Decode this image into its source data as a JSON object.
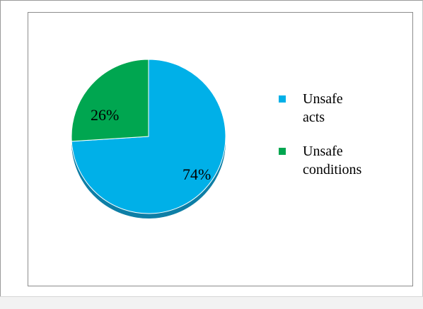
{
  "chart_data": {
    "type": "pie",
    "title": "",
    "categories": [
      "Unsafe acts",
      "Unsafe conditions"
    ],
    "values": [
      74,
      26
    ],
    "value_labels": [
      "74%",
      "26%"
    ],
    "colors": [
      "#00b0e8",
      "#00a650"
    ],
    "shadow_colors": [
      "#0e7fa6",
      "#0a7a3c"
    ],
    "legend": {
      "position": "right",
      "entries": [
        {
          "lines": [
            "Unsafe",
            "acts"
          ],
          "color": "#00b0e8"
        },
        {
          "lines": [
            "Unsafe",
            "conditions"
          ],
          "color": "#00a650"
        }
      ]
    }
  }
}
